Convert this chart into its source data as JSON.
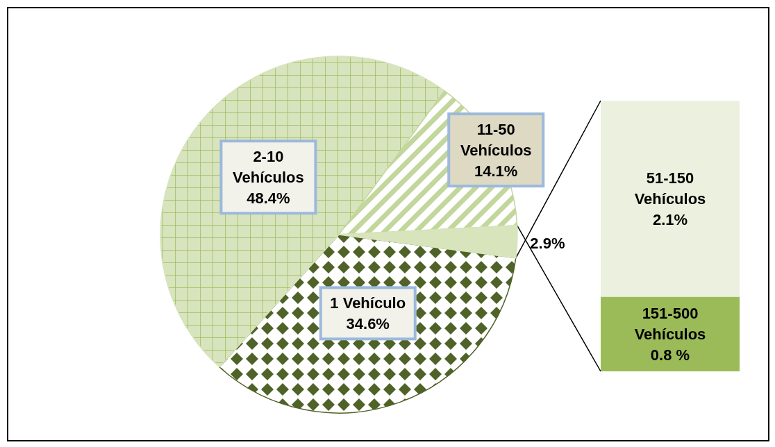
{
  "chart_data": [
    {
      "type": "pie",
      "categories": [
        "1 Vehículo",
        "2-10 Vehículos",
        "11-50 Vehículos",
        null
      ],
      "values": [
        34.6,
        48.4,
        14.1,
        2.9
      ],
      "colors": [
        "#4f6228",
        "#d7e4bd",
        "#c3d69b",
        "#d8e4bc"
      ],
      "value_labels": [
        "34.6%",
        "48.4%",
        "14.1%",
        "2.9%"
      ]
    },
    {
      "type": "bar",
      "stacked": true,
      "categories": [
        null
      ],
      "series": [
        {
          "name": "151-500 Vehículos",
          "color": "#9bbb59",
          "values": [
            0.8
          ],
          "value_labels": [
            "0.8 %"
          ]
        },
        {
          "name": "51-150 Vehículos",
          "color": "#ebf1de",
          "values": [
            2.1
          ],
          "value_labels": [
            "2.1%"
          ]
        }
      ]
    }
  ]
}
